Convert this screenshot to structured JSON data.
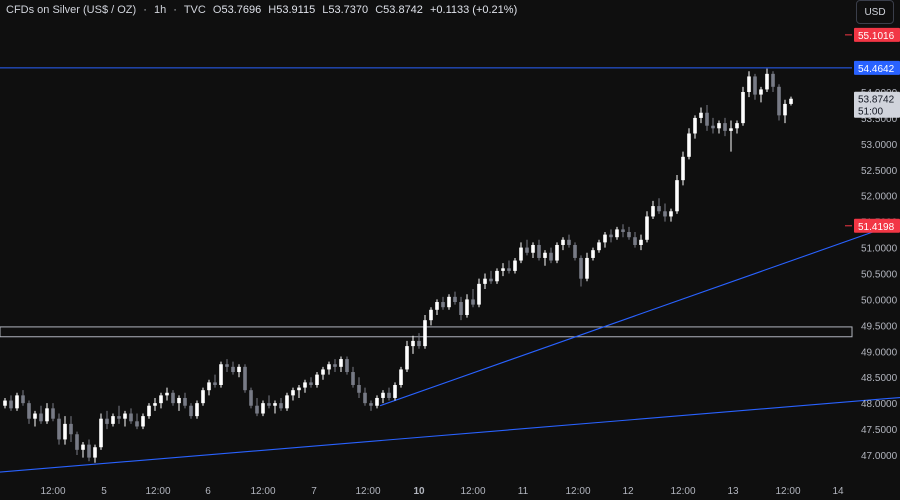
{
  "header": {
    "symbol": "CFDs on Silver (US$ / OZ)",
    "interval": "1h",
    "source": "TVC",
    "open_label": "O",
    "open": "53.7696",
    "high_label": "H",
    "high": "53.9115",
    "low_label": "L",
    "low": "53.7370",
    "close_label": "C",
    "close": "53.8742",
    "change": "+0.1133 (+0.21%)"
  },
  "currency_button": "USD",
  "colors": {
    "background": "#0f0f0f",
    "candle_up": "#ffffff",
    "candle_down": "#787b86",
    "trendline": "#2962ff",
    "level_red": "#f23645",
    "level_blue": "#2962ff",
    "support_zone": "#b2b5be",
    "axis_text": "#b2b5be"
  },
  "chart_data": {
    "type": "candlestick",
    "ylim": [
      46.7,
      55.5
    ],
    "y_ticks": [
      "54.0000",
      "53.5000",
      "53.0000",
      "52.5000",
      "52.0000",
      "51.5000",
      "51.0000",
      "50.5000",
      "50.0000",
      "49.5000",
      "49.0000",
      "48.5000",
      "48.0000",
      "47.5000",
      "47.0000"
    ],
    "x_ticks": [
      {
        "label": "12:00",
        "bold": false
      },
      {
        "label": "5",
        "bold": false
      },
      {
        "label": "12:00",
        "bold": false
      },
      {
        "label": "6",
        "bold": false
      },
      {
        "label": "12:00",
        "bold": false
      },
      {
        "label": "7",
        "bold": false
      },
      {
        "label": "12:00",
        "bold": false
      },
      {
        "label": "10",
        "bold": true
      },
      {
        "label": "12:00",
        "bold": false
      },
      {
        "label": "11",
        "bold": false
      },
      {
        "label": "12:00",
        "bold": false
      },
      {
        "label": "12",
        "bold": false
      },
      {
        "label": "12:00",
        "bold": false
      },
      {
        "label": "13",
        "bold": false
      },
      {
        "label": "12:00",
        "bold": false
      },
      {
        "label": "14",
        "bold": false
      }
    ],
    "candles": [
      [
        47.95,
        48.1,
        47.9,
        48.05
      ],
      [
        48.05,
        48.15,
        47.85,
        47.9
      ],
      [
        47.9,
        48.2,
        47.85,
        48.15
      ],
      [
        48.15,
        48.25,
        47.95,
        48.0
      ],
      [
        48.0,
        48.05,
        47.6,
        47.7
      ],
      [
        47.7,
        47.85,
        47.55,
        47.8
      ],
      [
        47.8,
        47.95,
        47.6,
        47.65
      ],
      [
        47.65,
        48.0,
        47.6,
        47.9
      ],
      [
        47.9,
        48.0,
        47.65,
        47.7
      ],
      [
        47.7,
        47.8,
        47.2,
        47.3
      ],
      [
        47.3,
        47.75,
        47.2,
        47.6
      ],
      [
        47.6,
        47.75,
        47.25,
        47.4
      ],
      [
        47.4,
        47.45,
        47.0,
        47.1
      ],
      [
        47.1,
        47.25,
        46.95,
        47.2
      ],
      [
        47.2,
        47.3,
        46.88,
        46.95
      ],
      [
        46.95,
        47.2,
        46.85,
        47.15
      ],
      [
        47.15,
        47.8,
        47.1,
        47.7
      ],
      [
        47.7,
        47.85,
        47.5,
        47.6
      ],
      [
        47.6,
        47.8,
        47.55,
        47.75
      ],
      [
        47.75,
        47.95,
        47.6,
        47.7
      ],
      [
        47.7,
        47.85,
        47.55,
        47.8
      ],
      [
        47.8,
        47.9,
        47.6,
        47.65
      ],
      [
        47.65,
        47.8,
        47.5,
        47.55
      ],
      [
        47.55,
        47.8,
        47.5,
        47.75
      ],
      [
        47.75,
        48.0,
        47.7,
        47.95
      ],
      [
        47.95,
        48.1,
        47.85,
        48.0
      ],
      [
        48.0,
        48.2,
        47.9,
        48.15
      ],
      [
        48.15,
        48.3,
        48.05,
        48.2
      ],
      [
        48.2,
        48.25,
        47.95,
        48.0
      ],
      [
        48.0,
        48.15,
        47.85,
        48.1
      ],
      [
        48.1,
        48.2,
        47.9,
        47.95
      ],
      [
        47.95,
        48.0,
        47.7,
        47.75
      ],
      [
        47.75,
        48.05,
        47.7,
        48.0
      ],
      [
        48.0,
        48.3,
        47.95,
        48.25
      ],
      [
        48.25,
        48.45,
        48.15,
        48.4
      ],
      [
        48.4,
        48.55,
        48.3,
        48.35
      ],
      [
        48.35,
        48.8,
        48.3,
        48.75
      ],
      [
        48.75,
        48.85,
        48.6,
        48.7
      ],
      [
        48.7,
        48.8,
        48.55,
        48.6
      ],
      [
        48.6,
        48.75,
        48.5,
        48.7
      ],
      [
        48.7,
        48.75,
        48.2,
        48.25
      ],
      [
        48.25,
        48.3,
        47.9,
        47.95
      ],
      [
        47.95,
        48.1,
        47.75,
        47.8
      ],
      [
        47.8,
        48.05,
        47.75,
        48.0
      ],
      [
        48.0,
        48.15,
        47.9,
        47.95
      ],
      [
        47.95,
        48.05,
        47.8,
        48.0
      ],
      [
        48.0,
        48.1,
        47.85,
        47.9
      ],
      [
        47.9,
        48.2,
        47.85,
        48.15
      ],
      [
        48.15,
        48.3,
        48.05,
        48.25
      ],
      [
        48.25,
        48.35,
        48.1,
        48.3
      ],
      [
        48.3,
        48.45,
        48.2,
        48.4
      ],
      [
        48.4,
        48.5,
        48.3,
        48.35
      ],
      [
        48.35,
        48.6,
        48.3,
        48.55
      ],
      [
        48.55,
        48.7,
        48.45,
        48.65
      ],
      [
        48.65,
        48.8,
        48.55,
        48.75
      ],
      [
        48.75,
        48.85,
        48.6,
        48.7
      ],
      [
        48.7,
        48.9,
        48.6,
        48.85
      ],
      [
        48.85,
        48.9,
        48.55,
        48.6
      ],
      [
        48.6,
        48.7,
        48.3,
        48.35
      ],
      [
        48.35,
        48.5,
        48.1,
        48.2
      ],
      [
        48.2,
        48.3,
        47.95,
        48.0
      ],
      [
        48.0,
        48.05,
        47.85,
        47.95
      ],
      [
        47.95,
        48.15,
        47.9,
        48.1
      ],
      [
        48.1,
        48.25,
        48.0,
        48.2
      ],
      [
        48.2,
        48.3,
        48.05,
        48.1
      ],
      [
        48.1,
        48.4,
        48.05,
        48.35
      ],
      [
        48.35,
        48.7,
        48.3,
        48.65
      ],
      [
        48.65,
        49.2,
        48.6,
        49.1
      ],
      [
        49.1,
        49.3,
        48.95,
        49.2
      ],
      [
        49.2,
        49.35,
        49.05,
        49.1
      ],
      [
        49.1,
        49.7,
        49.05,
        49.6
      ],
      [
        49.6,
        49.85,
        49.5,
        49.8
      ],
      [
        49.8,
        50.0,
        49.7,
        49.95
      ],
      [
        49.95,
        50.05,
        49.8,
        49.85
      ],
      [
        49.85,
        50.1,
        49.8,
        50.05
      ],
      [
        50.05,
        50.15,
        49.9,
        49.95
      ],
      [
        49.95,
        50.05,
        49.6,
        49.7
      ],
      [
        49.7,
        50.1,
        49.65,
        50.0
      ],
      [
        50.0,
        50.2,
        49.85,
        49.9
      ],
      [
        49.9,
        50.4,
        49.85,
        50.3
      ],
      [
        50.3,
        50.5,
        50.2,
        50.4
      ],
      [
        50.4,
        50.55,
        50.3,
        50.35
      ],
      [
        50.35,
        50.6,
        50.3,
        50.55
      ],
      [
        50.55,
        50.7,
        50.45,
        50.6
      ],
      [
        50.6,
        50.75,
        50.5,
        50.55
      ],
      [
        50.55,
        50.8,
        50.5,
        50.75
      ],
      [
        50.75,
        51.1,
        50.7,
        51.0
      ],
      [
        51.0,
        51.15,
        50.85,
        50.9
      ],
      [
        50.9,
        51.1,
        50.8,
        51.05
      ],
      [
        51.05,
        51.15,
        50.75,
        50.8
      ],
      [
        50.8,
        50.95,
        50.65,
        50.9
      ],
      [
        50.9,
        51.0,
        50.7,
        50.75
      ],
      [
        50.75,
        51.1,
        50.7,
        51.05
      ],
      [
        51.05,
        51.2,
        50.95,
        51.15
      ],
      [
        51.15,
        51.25,
        51.0,
        51.05
      ],
      [
        51.05,
        51.1,
        50.75,
        50.8
      ],
      [
        50.8,
        50.85,
        50.25,
        50.4
      ],
      [
        50.4,
        50.9,
        50.35,
        50.8
      ],
      [
        50.8,
        51.0,
        50.75,
        50.95
      ],
      [
        50.95,
        51.15,
        50.9,
        51.1
      ],
      [
        51.1,
        51.3,
        51.0,
        51.25
      ],
      [
        51.25,
        51.35,
        51.1,
        51.2
      ],
      [
        51.2,
        51.4,
        51.15,
        51.35
      ],
      [
        51.35,
        51.45,
        51.2,
        51.3
      ],
      [
        51.3,
        51.4,
        51.15,
        51.2
      ],
      [
        51.2,
        51.3,
        51.0,
        51.05
      ],
      [
        51.05,
        51.25,
        50.95,
        51.15
      ],
      [
        51.15,
        51.7,
        51.1,
        51.6
      ],
      [
        51.6,
        51.9,
        51.55,
        51.8
      ],
      [
        51.8,
        51.95,
        51.65,
        51.7
      ],
      [
        51.7,
        51.85,
        51.5,
        51.6
      ],
      [
        51.6,
        51.75,
        51.5,
        51.7
      ],
      [
        51.7,
        52.4,
        51.65,
        52.3
      ],
      [
        52.3,
        52.85,
        52.2,
        52.75
      ],
      [
        52.75,
        53.3,
        52.7,
        53.2
      ],
      [
        53.2,
        53.55,
        53.1,
        53.5
      ],
      [
        53.5,
        53.7,
        53.4,
        53.6
      ],
      [
        53.6,
        53.75,
        53.25,
        53.35
      ],
      [
        53.35,
        53.5,
        53.2,
        53.3
      ],
      [
        53.3,
        53.45,
        53.2,
        53.4
      ],
      [
        53.4,
        53.5,
        53.15,
        53.25
      ],
      [
        53.25,
        53.45,
        52.85,
        53.3
      ],
      [
        53.3,
        53.45,
        53.2,
        53.4
      ],
      [
        53.4,
        54.1,
        53.35,
        54.0
      ],
      [
        54.0,
        54.4,
        53.9,
        54.3
      ],
      [
        54.3,
        54.35,
        53.85,
        53.95
      ],
      [
        53.95,
        54.1,
        53.8,
        54.05
      ],
      [
        54.05,
        54.45,
        54.0,
        54.35
      ],
      [
        54.35,
        54.4,
        54.0,
        54.1
      ],
      [
        54.1,
        54.15,
        53.45,
        53.55
      ],
      [
        53.55,
        53.85,
        53.4,
        53.77
      ],
      [
        53.77,
        53.91,
        53.74,
        53.87
      ]
    ],
    "trendlines": [
      {
        "name": "",
        "from": {
          "i": -3,
          "price": 46.65
        },
        "to": {
          "i": 190,
          "price": 48.5
        }
      },
      {
        "name": "",
        "from": {
          "i": 62.5,
          "price": 47.95
        },
        "to": {
          "i": 190,
          "price": 53.15
        }
      }
    ],
    "horizontal_lines": [
      {
        "price": 54.4642,
        "label": "54.4642",
        "color": "#2962ff",
        "from_i": -5
      },
      {
        "price": 55.1016,
        "label": "55.1016",
        "color": "#f23645",
        "from_i": 140
      },
      {
        "price": 51.4198,
        "label": "51.4198",
        "color": "#f23645",
        "from_i": 140
      }
    ],
    "support_zone": {
      "top": 49.47,
      "bottom": 49.28
    },
    "last_price_label": "53.8742",
    "countdown_label": "51:00"
  }
}
